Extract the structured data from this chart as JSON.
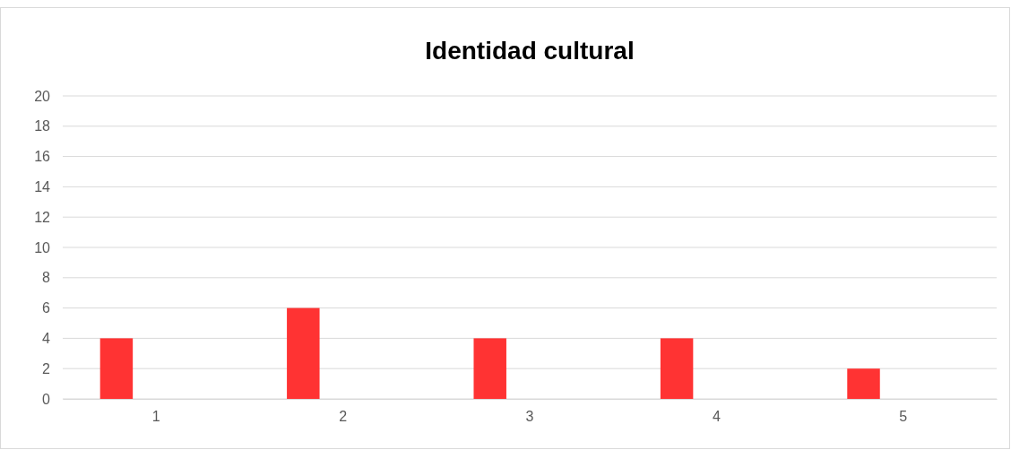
{
  "chart_data": {
    "type": "bar",
    "title": "Identidad cultural",
    "categories": [
      "1",
      "2",
      "3",
      "4",
      "5"
    ],
    "series": [
      {
        "color": "#ff3333",
        "values": [
          4,
          6,
          4,
          4,
          2
        ]
      }
    ],
    "ylim": [
      0,
      20
    ],
    "yticks": [
      0,
      2,
      4,
      6,
      8,
      10,
      12,
      14,
      16,
      18,
      20
    ],
    "grid": "y"
  }
}
